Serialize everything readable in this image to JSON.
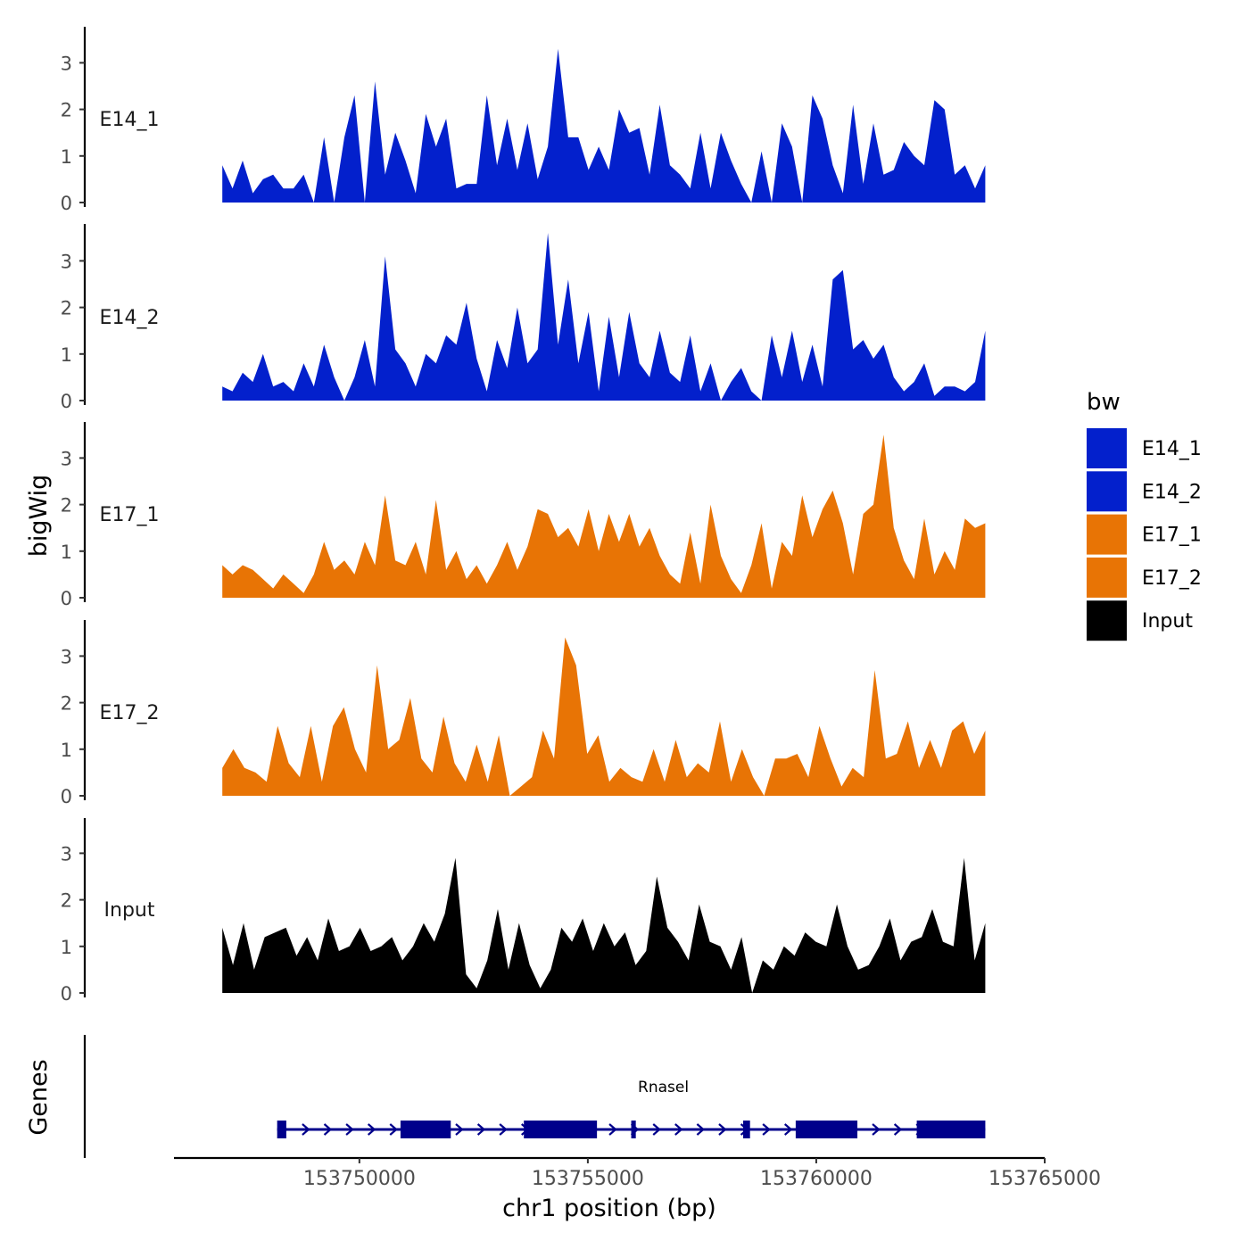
{
  "chart_data": {
    "type": "area",
    "title": "",
    "ylabel": "bigWig",
    "xlabel": "chr1 position (bp)",
    "xlim": [
      153746000,
      153765000
    ],
    "ylim": [
      0,
      3.6
    ],
    "x_ticks": [
      153750000,
      153755000,
      153760000,
      153765000
    ],
    "x_tick_labels": [
      "153750000",
      "153755000",
      "153760000",
      "153765000"
    ],
    "y_ticks": [
      0,
      1,
      2,
      3
    ],
    "y_tick_labels": [
      "0",
      "1",
      "2",
      "3"
    ],
    "legend": {
      "title": "bw",
      "position": "right",
      "entries": [
        {
          "label": "E14_1",
          "color": "#0320cc"
        },
        {
          "label": "E14_2",
          "color": "#0320cc"
        },
        {
          "label": "E17_1",
          "color": "#e87405"
        },
        {
          "label": "E17_2",
          "color": "#e87405"
        },
        {
          "label": "Input",
          "color": "#000000"
        }
      ]
    },
    "x_range": [
      153747000,
      153763700
    ],
    "series": [
      {
        "name": "E14_1",
        "color": "#0320cc",
        "values": [
          0.8,
          0.3,
          0.9,
          0.2,
          0.5,
          0.6,
          0.3,
          0.3,
          0.6,
          0,
          1.4,
          0,
          1.4,
          2.3,
          0,
          2.6,
          0.6,
          1.5,
          0.9,
          0.2,
          1.9,
          1.2,
          1.8,
          0.3,
          0.4,
          0.4,
          2.3,
          0.8,
          1.8,
          0.7,
          1.7,
          0.5,
          1.2,
          3.3,
          1.4,
          1.4,
          0.7,
          1.2,
          0.7,
          2.0,
          1.5,
          1.6,
          0.6,
          2.1,
          0.8,
          0.6,
          0.3,
          1.5,
          0.3,
          1.5,
          0.9,
          0.4,
          0,
          1.1,
          0,
          1.7,
          1.2,
          0,
          2.3,
          1.8,
          0.8,
          0.2,
          2.1,
          0.4,
          1.7,
          0.6,
          0.7,
          1.3,
          1.0,
          0.8,
          2.2,
          2.0,
          0.6,
          0.8,
          0.3,
          0.8
        ]
      },
      {
        "name": "E14_2",
        "color": "#0320cc",
        "values": [
          0.3,
          0.2,
          0.6,
          0.4,
          1.0,
          0.3,
          0.4,
          0.2,
          0.8,
          0.3,
          1.2,
          0.5,
          0,
          0.5,
          1.3,
          0.3,
          3.1,
          1.1,
          0.8,
          0.3,
          1.0,
          0.8,
          1.4,
          1.2,
          2.1,
          0.9,
          0.2,
          1.3,
          0.7,
          2.0,
          0.8,
          1.1,
          3.6,
          1.2,
          2.6,
          0.8,
          1.9,
          0.2,
          1.8,
          0.5,
          1.9,
          0.8,
          0.5,
          1.5,
          0.6,
          0.4,
          1.4,
          0.2,
          0.8,
          0,
          0.4,
          0.7,
          0.2,
          0,
          1.4,
          0.5,
          1.5,
          0.4,
          1.2,
          0.3,
          2.6,
          2.8,
          1.1,
          1.3,
          0.9,
          1.2,
          0.5,
          0.2,
          0.4,
          0.8,
          0.1,
          0.3,
          0.3,
          0.2,
          0.4,
          1.5
        ]
      },
      {
        "name": "E17_1",
        "color": "#e87405",
        "values": [
          0.7,
          0.5,
          0.7,
          0.6,
          0.4,
          0.2,
          0.5,
          0.3,
          0.1,
          0.5,
          1.2,
          0.6,
          0.8,
          0.5,
          1.2,
          0.7,
          2.2,
          0.8,
          0.7,
          1.2,
          0.5,
          2.1,
          0.6,
          1.0,
          0.4,
          0.7,
          0.3,
          0.7,
          1.2,
          0.6,
          1.1,
          1.9,
          1.8,
          1.3,
          1.5,
          1.1,
          1.9,
          1.0,
          1.8,
          1.2,
          1.8,
          1.1,
          1.5,
          0.9,
          0.5,
          0.3,
          1.4,
          0.3,
          2.0,
          0.9,
          0.4,
          0.1,
          0.7,
          1.6,
          0.2,
          1.2,
          0.9,
          2.2,
          1.3,
          1.9,
          2.3,
          1.6,
          0.5,
          1.8,
          2.0,
          3.5,
          1.5,
          0.8,
          0.4,
          1.7,
          0.5,
          1.0,
          0.6,
          1.7,
          1.5,
          1.6
        ]
      },
      {
        "name": "E17_2",
        "color": "#e87405",
        "values": [
          0.6,
          1.0,
          0.6,
          0.5,
          0.3,
          1.5,
          0.7,
          0.4,
          1.5,
          0.3,
          1.5,
          1.9,
          1.0,
          0.5,
          2.8,
          1.0,
          1.2,
          2.1,
          0.8,
          0.5,
          1.7,
          0.7,
          0.3,
          1.1,
          0.3,
          1.3,
          0,
          0.2,
          0.4,
          1.4,
          0.8,
          3.4,
          2.8,
          0.9,
          1.3,
          0.3,
          0.6,
          0.4,
          0.3,
          1.0,
          0.3,
          1.2,
          0.4,
          0.7,
          0.5,
          1.6,
          0.3,
          1.0,
          0.4,
          0,
          0.8,
          0.8,
          0.9,
          0.4,
          1.5,
          0.8,
          0.2,
          0.6,
          0.4,
          2.7,
          0.8,
          0.9,
          1.6,
          0.6,
          1.2,
          0.6,
          1.4,
          1.6,
          0.9,
          1.4
        ]
      },
      {
        "name": "Input",
        "color": "#000000",
        "values": [
          1.4,
          0.6,
          1.5,
          0.5,
          1.2,
          1.3,
          1.4,
          0.8,
          1.2,
          0.7,
          1.6,
          0.9,
          1.0,
          1.4,
          0.9,
          1.0,
          1.2,
          0.7,
          1.0,
          1.5,
          1.1,
          1.7,
          2.9,
          0.4,
          0.1,
          0.7,
          1.8,
          0.5,
          1.5,
          0.6,
          0.1,
          0.5,
          1.4,
          1.1,
          1.6,
          0.9,
          1.5,
          1.0,
          1.3,
          0.6,
          0.9,
          2.5,
          1.4,
          1.1,
          0.7,
          1.9,
          1.1,
          1.0,
          0.5,
          1.2,
          0,
          0.7,
          0.5,
          1.0,
          0.8,
          1.3,
          1.1,
          1.0,
          1.9,
          1.0,
          0.5,
          0.6,
          1.0,
          1.6,
          0.7,
          1.1,
          1.2,
          1.8,
          1.1,
          1.0,
          2.9,
          0.7,
          1.5
        ]
      }
    ],
    "gene_track": {
      "label": "Genes",
      "gene_name": "Rnasel",
      "strand": "+",
      "start": 153748200,
      "end": 153763700,
      "exons": [
        [
          153748200,
          153748400
        ],
        [
          153750900,
          153752000
        ],
        [
          153753600,
          153755200
        ],
        [
          153755950,
          153756050
        ],
        [
          153758400,
          153758550
        ],
        [
          153759550,
          153760900
        ],
        [
          153762200,
          153763700
        ]
      ]
    }
  }
}
